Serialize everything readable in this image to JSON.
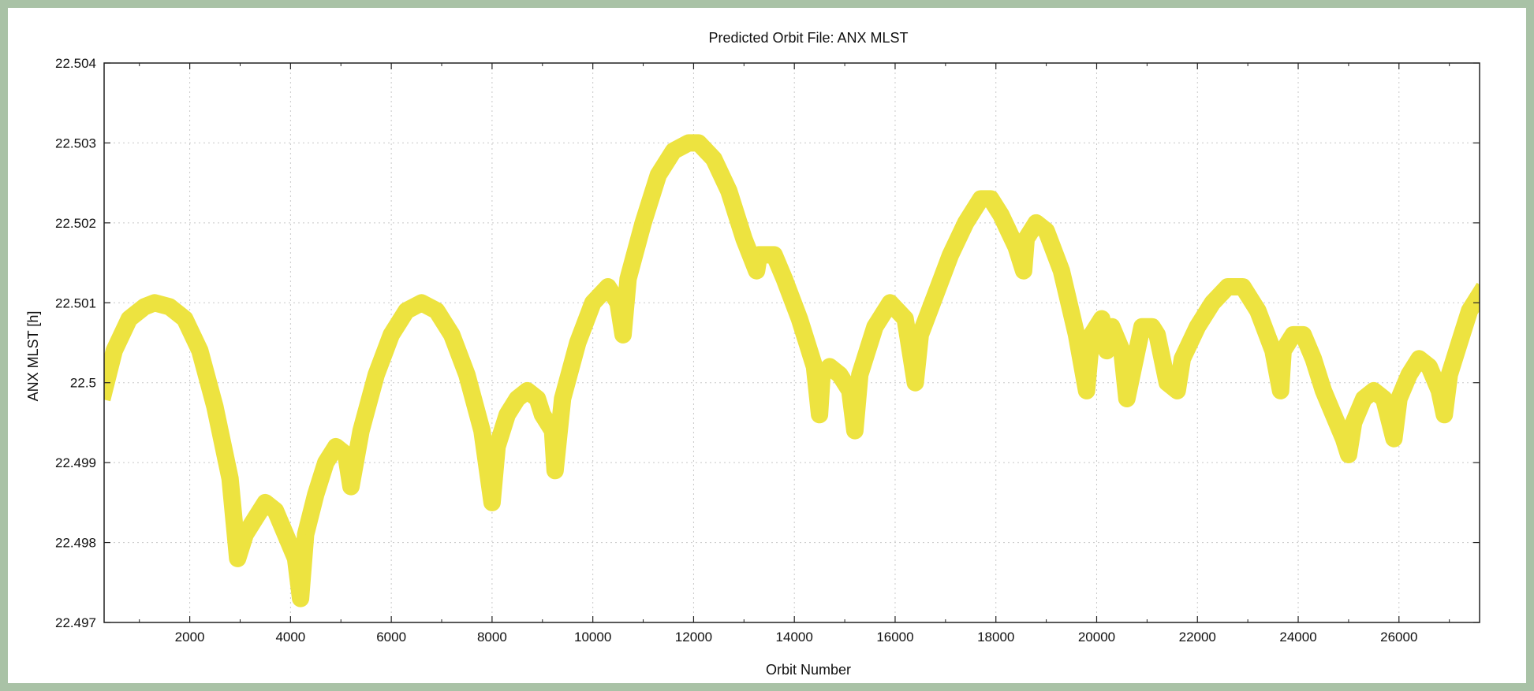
{
  "chart_data": {
    "type": "line",
    "title": "Predicted Orbit File: ANX MLST",
    "xlabel": "Orbit Number",
    "ylabel": "ANX MLST [h]",
    "xlim": [
      300,
      27600
    ],
    "ylim": [
      22.497,
      22.504
    ],
    "xticks": [
      2000,
      4000,
      6000,
      8000,
      10000,
      12000,
      14000,
      16000,
      18000,
      20000,
      22000,
      24000,
      26000
    ],
    "yticks": [
      22.497,
      22.498,
      22.499,
      22.5,
      22.501,
      22.502,
      22.503,
      22.504
    ],
    "ytick_labels": [
      "22.497",
      "22.498",
      "22.499",
      "22.5",
      "22.501",
      "22.502",
      "22.503",
      "22.504"
    ],
    "grid": true,
    "series_color": "#ede340",
    "series": [
      {
        "x": [
          300,
          500,
          800,
          1100,
          1300,
          1600,
          1900,
          2200,
          2500,
          2800,
          2950,
          3100,
          3300,
          3500,
          3700,
          3900,
          4100,
          4200,
          4300,
          4500,
          4700,
          4900,
          5100,
          5200,
          5400,
          5700,
          6000,
          6300,
          6600,
          6900,
          7200,
          7500,
          7800,
          8000,
          8100,
          8300,
          8500,
          8700,
          8900,
          9000,
          9200,
          9250,
          9400,
          9700,
          10000,
          10300,
          10500,
          10600,
          10700,
          11000,
          11300,
          11600,
          11900,
          12100,
          12400,
          12700,
          13000,
          13250,
          13300,
          13400,
          13600,
          13800,
          14100,
          14400,
          14500,
          14550,
          14700,
          14900,
          15100,
          15200,
          15300,
          15600,
          15900,
          16200,
          16400,
          16500,
          16800,
          17100,
          17400,
          17700,
          17900,
          18100,
          18400,
          18550,
          18600,
          18800,
          19000,
          19300,
          19600,
          19800,
          19900,
          20100,
          20200,
          20300,
          20500,
          20600,
          20800,
          20900,
          21100,
          21200,
          21400,
          21600,
          21700,
          22000,
          22300,
          22600,
          22900,
          23200,
          23500,
          23650,
          23700,
          23900,
          24100,
          24300,
          24500,
          24700,
          24900,
          25000,
          25100,
          25300,
          25500,
          25700,
          25900,
          26000,
          26200,
          26400,
          26600,
          26800,
          26900,
          27000,
          27200,
          27400,
          27600
        ],
        "y": [
          22.4999,
          22.5004,
          22.5008,
          22.50095,
          22.501,
          22.50095,
          22.5008,
          22.5004,
          22.4997,
          22.4988,
          22.4978,
          22.4981,
          22.4983,
          22.4985,
          22.4984,
          22.4981,
          22.4978,
          22.4973,
          22.4981,
          22.4986,
          22.499,
          22.4992,
          22.4991,
          22.4987,
          22.4994,
          22.5001,
          22.5006,
          22.5009,
          22.501,
          22.5009,
          22.5006,
          22.5001,
          22.4994,
          22.4985,
          22.4992,
          22.4996,
          22.4998,
          22.4999,
          22.4998,
          22.4996,
          22.4994,
          22.4989,
          22.4998,
          22.5005,
          22.501,
          22.5012,
          22.501,
          22.5006,
          22.5013,
          22.502,
          22.5026,
          22.5029,
          22.503,
          22.503,
          22.5028,
          22.5024,
          22.5018,
          22.5014,
          22.5016,
          22.5016,
          22.5016,
          22.5013,
          22.5008,
          22.5002,
          22.4996,
          22.5001,
          22.5002,
          22.5001,
          22.4999,
          22.4994,
          22.5001,
          22.5007,
          22.501,
          22.5008,
          22.5,
          22.5006,
          22.5011,
          22.5016,
          22.502,
          22.5023,
          22.5023,
          22.5021,
          22.5017,
          22.5014,
          22.5018,
          22.502,
          22.5019,
          22.5014,
          22.5006,
          22.4999,
          22.5006,
          22.5008,
          22.5004,
          22.5007,
          22.5004,
          22.4998,
          22.5004,
          22.5007,
          22.5007,
          22.5006,
          22.5,
          22.4999,
          22.5003,
          22.5007,
          22.501,
          22.5012,
          22.5012,
          22.5009,
          22.5004,
          22.4999,
          22.5004,
          22.5006,
          22.5006,
          22.5003,
          22.4999,
          22.4996,
          22.4993,
          22.4991,
          22.4995,
          22.4998,
          22.4999,
          22.4998,
          22.4993,
          22.4998,
          22.5001,
          22.5003,
          22.5002,
          22.4999,
          22.4996,
          22.5001,
          22.5005,
          22.5009,
          22.5011
        ]
      }
    ]
  }
}
